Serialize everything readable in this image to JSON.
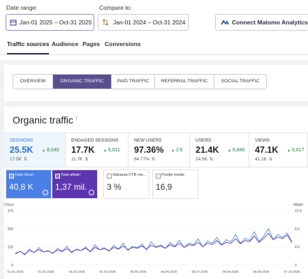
{
  "header": {
    "date_range_label": "Date range:",
    "date_range": "Jan-01 2025 – Oct-31 2025",
    "compare_label": "Compare to:",
    "compare_range": "Jan-01 2024 – Oct-31 2024",
    "connect_button": "Connect Matomo Analytics"
  },
  "tabs": [
    "Traffic sources",
    "Audience",
    "Pages",
    "Conversions"
  ],
  "segments": [
    "OVERVIEW",
    "ORGANIC TRAFFIC",
    "PAID TRAFFIC",
    "REFERRAL TRAFFIC",
    "SOCIAL TRAFFIC"
  ],
  "section": {
    "title": "Organic traffic",
    "title_icon": "i"
  },
  "metrics": [
    {
      "label": "SESSIONS",
      "value": "25.5K",
      "delta": "8,040",
      "previous": "17.5K"
    },
    {
      "label": "ENGAGED SESSIONS",
      "value": "17.7K",
      "delta": "6,011",
      "previous": "11.7K"
    },
    {
      "label": "NEW USERS",
      "value": "97.36%",
      "delta": "2.6",
      "previous": "94.77%"
    },
    {
      "label": "USERS",
      "value": "21.4K",
      "delta": "6,840",
      "previous": "14.5K"
    },
    {
      "label": "VIEWS",
      "value": "47.1K",
      "delta": "6,017",
      "previous": "41.1K"
    }
  ],
  "search_console": {
    "tiles": [
      {
        "label": "Total clicuri",
        "value": "40,8 K",
        "color": "#4a7fe6",
        "checked": true
      },
      {
        "label": "Total afișări",
        "value": "1,37 mil.",
        "color": "#5e35b1",
        "checked": true
      },
      {
        "label": "Valoarea CTR me...",
        "value": "3 %",
        "color": "#ffffff",
        "checked": false
      },
      {
        "label": "Poziție medie",
        "value": "16,9",
        "color": "#ffffff",
        "checked": false
      }
    ],
    "chart": {
      "y_label": "Clicuri",
      "y2_label": "Afișări",
      "ylim": [
        0,
        375
      ],
      "yticks": [
        0,
        125,
        250,
        375
      ],
      "y2lim": [
        0,
        12
      ],
      "y2ticks": [
        0,
        {
          "value": 4,
          "label": "4 K"
        },
        {
          "value": 8,
          "label": "8 K"
        },
        {
          "value": 12,
          "label": "12 K"
        }
      ],
      "categories": [
        "01.01.2025",
        "01.02.2025",
        "04.03.2025",
        "04.04.2025",
        "05.05.2025",
        "05.06.2025",
        "06.07.2025",
        "06.08.2025",
        "06.09.2025",
        "07.10.2025"
      ],
      "series": [
        {
          "name": "Total clicuri",
          "color": "#4a86e8",
          "values": [
            75,
            95,
            70,
            110,
            85,
            120,
            90,
            100,
            80,
            115,
            95,
            130,
            85,
            110,
            100,
            125,
            90,
            140,
            105,
            120,
            95,
            135,
            110,
            150,
            100,
            130,
            120,
            145,
            105,
            160,
            125,
            140,
            115,
            155,
            130,
            170,
            120,
            150,
            140,
            180,
            125,
            165,
            150,
            190,
            140,
            175,
            160,
            210,
            150,
            185,
            170,
            230,
            160,
            200,
            250,
            175,
            210,
            190,
            220,
            160
          ]
        },
        {
          "name": "Total afișări",
          "color": "#5e35b1",
          "axis": "y2",
          "values": [
            2.6,
            3.0,
            2.4,
            3.2,
            2.8,
            3.4,
            2.9,
            3.1,
            2.7,
            3.3,
            3.0,
            3.6,
            2.9,
            3.4,
            3.2,
            3.7,
            3.0,
            3.9,
            3.4,
            3.6,
            3.2,
            3.9,
            3.5,
            4.2,
            3.4,
            3.9,
            3.7,
            4.2,
            3.5,
            4.4,
            3.9,
            4.2,
            3.7,
            4.5,
            4.0,
            4.8,
            3.9,
            4.5,
            4.3,
            5.0,
            4.1,
            4.8,
            4.5,
            5.4,
            4.4,
            5.0,
            4.8,
            5.8,
            4.7,
            5.4,
            5.2,
            6.4,
            5.0,
            5.9,
            7.0,
            5.6,
            6.2,
            5.8,
            6.6,
            5.0
          ]
        }
      ]
    }
  }
}
